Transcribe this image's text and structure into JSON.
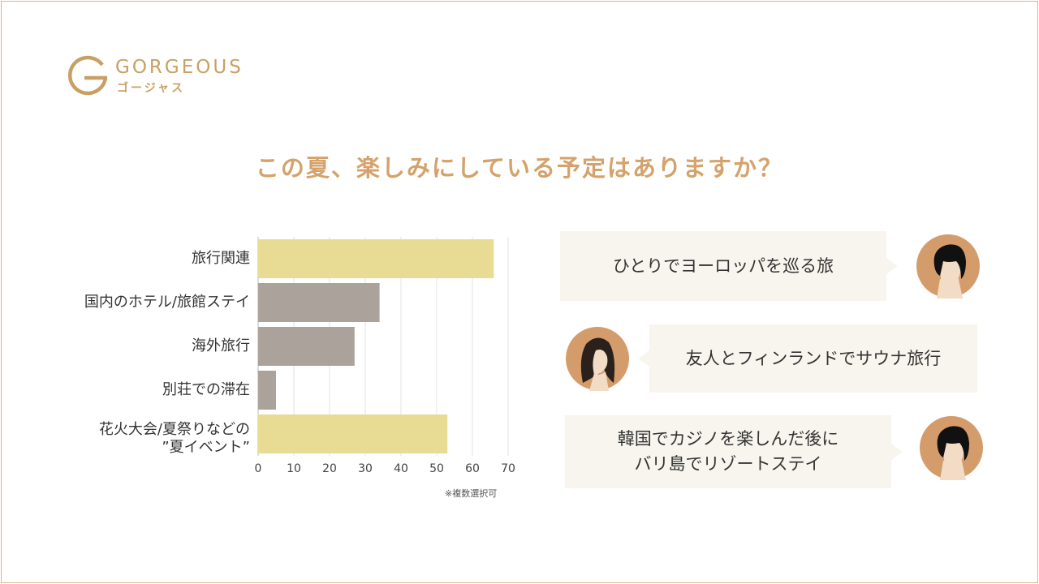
{
  "brand": {
    "name": "GORGEOUS",
    "kana": "ゴージャス",
    "color": "#c9a064"
  },
  "title": "この夏、楽しみにしている予定はありますか？",
  "chart_data": {
    "type": "bar",
    "orientation": "horizontal",
    "categories": [
      "旅行関連",
      "国内のホテル/旅館ステイ",
      "海外旅行",
      "別荘での滞在",
      "花火大会/夏祭りなどの\n”夏イベント”"
    ],
    "values": [
      66,
      34,
      27,
      5,
      53
    ],
    "colors": [
      "#e8dc94",
      "#aba29b",
      "#aba29b",
      "#aba29b",
      "#e8dc94"
    ],
    "xlim": [
      0,
      70
    ],
    "xticks": [
      "0",
      "10",
      "20",
      "30",
      "40",
      "50",
      "60",
      "70"
    ],
    "grid": true,
    "note": "※複数選択可"
  },
  "comments": [
    {
      "text": "ひとりでヨーロッパを巡る旅",
      "avatar": "man-avatar-icon",
      "side": "right"
    },
    {
      "text": "友人とフィンランドでサウナ旅行",
      "avatar": "woman-avatar-icon",
      "side": "left"
    },
    {
      "text": "韓国でカジノを楽しんだ後に\nバリ島でリゾートステイ",
      "avatar": "man-avatar-icon",
      "side": "right"
    }
  ]
}
